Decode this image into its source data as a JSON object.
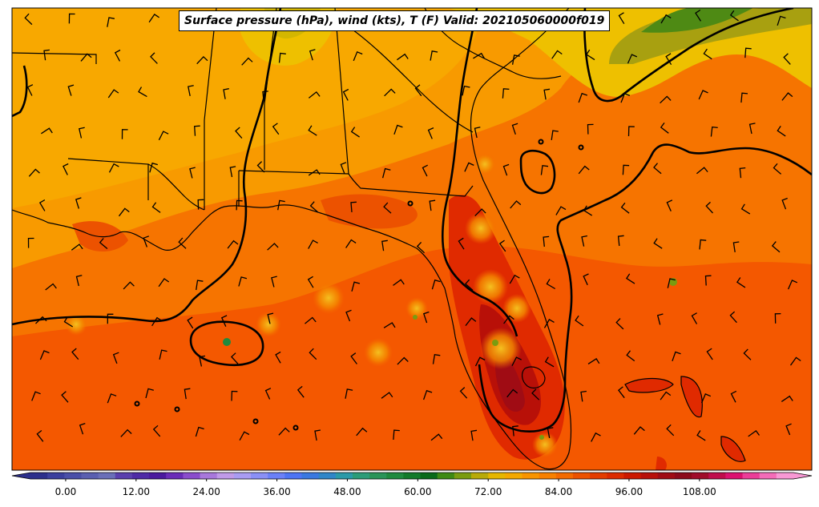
{
  "title": "Surface pressure (hPa), wind (kts), T (F) Valid: 202105060000f019",
  "colorbar": {
    "tick_labels": [
      "0.00",
      "12.00",
      "24.00",
      "36.00",
      "48.00",
      "60.00",
      "72.00",
      "84.00",
      "96.00",
      "108.00"
    ],
    "min": -6,
    "max": 124,
    "step": 3,
    "colors": [
      "#2c2f8c",
      "#3b3f9e",
      "#4a4fa8",
      "#5a5fb0",
      "#6a6fb8",
      "#5a3fae",
      "#4e2aa6",
      "#4b1a9e",
      "#6a2cb8",
      "#8a4ccc",
      "#a878dc",
      "#c09ae8",
      "#a99cf2",
      "#8a90f6",
      "#6a80f8",
      "#4d74f4",
      "#3a78e0",
      "#2f86c8",
      "#2a9aa8",
      "#2c9c78",
      "#2a9458",
      "#1f8a3e",
      "#137a2a",
      "#0a6a1a",
      "#3e8a14",
      "#7a9c10",
      "#b8aa08",
      "#e6b600",
      "#f4a800",
      "#f89400",
      "#f88000",
      "#f46a00",
      "#ec5200",
      "#e43c00",
      "#dc2a00",
      "#cc1800",
      "#b8100a",
      "#a00c14",
      "#8c0a1a",
      "#a00c2a",
      "#c00c4c",
      "#dc1070",
      "#ec3c98",
      "#f46cb8",
      "#f898d4"
    ]
  },
  "contours": "Surface pressure (hPa)",
  "barbs": "wind (kts)",
  "shading": "T (F)"
}
